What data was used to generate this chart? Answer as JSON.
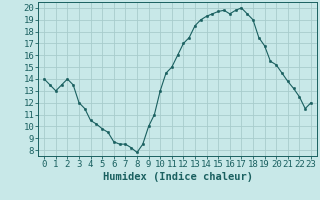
{
  "x": [
    0,
    0.5,
    1,
    1.5,
    2,
    2.5,
    3,
    3.5,
    4,
    4.5,
    5,
    5.5,
    6,
    6.5,
    7,
    7.5,
    8,
    8.5,
    9,
    9.5,
    10,
    10.5,
    11,
    11.5,
    12,
    12.5,
    13,
    13.5,
    14,
    14.5,
    15,
    15.5,
    16,
    16.5,
    17,
    17.5,
    18,
    18.5,
    19,
    19.5,
    20,
    20.5,
    21,
    21.5,
    22,
    22.5,
    23
  ],
  "y": [
    14,
    13.5,
    13,
    13.5,
    14,
    13.5,
    12,
    11.5,
    10.5,
    10.2,
    9.8,
    9.5,
    8.7,
    8.5,
    8.5,
    8.2,
    7.8,
    8.5,
    10,
    11,
    13,
    14.5,
    15,
    16,
    17,
    17.5,
    18.5,
    19,
    19.3,
    19.5,
    19.7,
    19.8,
    19.5,
    19.8,
    20,
    19.5,
    19,
    17.5,
    16.8,
    15.5,
    15.2,
    14.5,
    13.8,
    13.2,
    12.5,
    11.5,
    12
  ],
  "xlabel": "Humidex (Indice chaleur)",
  "ylabel": "",
  "xlim": [
    -0.5,
    23.5
  ],
  "ylim": [
    7.5,
    20.5
  ],
  "yticks": [
    8,
    9,
    10,
    11,
    12,
    13,
    14,
    15,
    16,
    17,
    18,
    19,
    20
  ],
  "xticks": [
    0,
    1,
    2,
    3,
    4,
    5,
    6,
    7,
    8,
    9,
    10,
    11,
    12,
    13,
    14,
    15,
    16,
    17,
    18,
    19,
    20,
    21,
    22,
    23
  ],
  "line_color": "#1a6060",
  "marker_color": "#1a6060",
  "bg_color": "#c8e8e8",
  "grid_color": "#a8cccc",
  "xlabel_fontsize": 7.5,
  "tick_fontsize": 6.5
}
